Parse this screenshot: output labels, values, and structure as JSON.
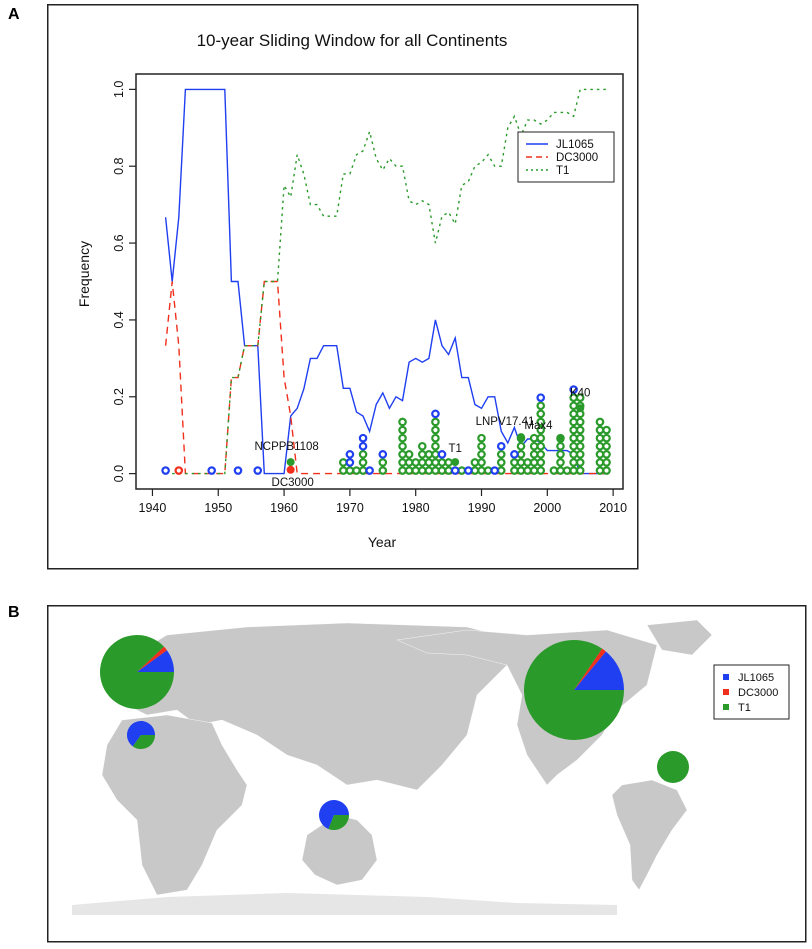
{
  "panels": {
    "a_label": "A",
    "b_label": "B"
  },
  "colors": {
    "JL1065": "#1f3ff0",
    "DC3000": "#f0301c",
    "T1": "#2a9a2a",
    "land": "#c8c8c8",
    "antarctica": "#e6e6e6"
  },
  "chart_data": [
    {
      "type": "line",
      "title": "10-year Sliding Window for all Continents",
      "xlabel": "Year",
      "ylabel": "Frequency",
      "xlim": [
        1940,
        2010
      ],
      "ylim": [
        0.0,
        1.0
      ],
      "x_ticks": [
        "1940",
        "1950",
        "1960",
        "1970",
        "1980",
        "1990",
        "2000",
        "2010"
      ],
      "y_ticks": [
        "0.0",
        "0.2",
        "0.4",
        "0.6",
        "0.8",
        "1.0"
      ],
      "grid": false,
      "legend": {
        "placement": "top-right",
        "entries": [
          {
            "name": "JL1065",
            "style": "solid"
          },
          {
            "name": "DC3000",
            "style": "dashed"
          },
          {
            "name": "T1",
            "style": "dotted"
          }
        ]
      },
      "series": [
        {
          "name": "JL1065",
          "style": "solid",
          "x": [
            1942,
            1943,
            1944,
            1945,
            1946,
            1947,
            1948,
            1949,
            1950,
            1951,
            1952,
            1953,
            1954,
            1955,
            1956,
            1957,
            1958,
            1959,
            1960,
            1961,
            1962,
            1963,
            1964,
            1965,
            1966,
            1967,
            1968,
            1969,
            1970,
            1971,
            1972,
            1973,
            1974,
            1975,
            1976,
            1977,
            1978,
            1979,
            1980,
            1981,
            1982,
            1983,
            1984,
            1985,
            1986,
            1987,
            1988,
            1989,
            1990,
            1991,
            1992,
            1993,
            1994,
            1995,
            1996,
            1997,
            1998,
            1999,
            2000,
            2001,
            2002,
            2003,
            2004,
            2005,
            2006,
            2007,
            2008,
            2009
          ],
          "y": [
            0.667,
            0.5,
            0.667,
            1.0,
            1.0,
            1.0,
            1.0,
            1.0,
            1.0,
            1.0,
            0.5,
            0.5,
            0.333,
            0.333,
            0.333,
            0.0,
            0.0,
            0.0,
            0.0,
            0.15,
            0.17,
            0.22,
            0.3,
            0.3,
            0.333,
            0.333,
            0.333,
            0.222,
            0.222,
            0.16,
            0.15,
            0.11,
            0.18,
            0.21,
            0.17,
            0.2,
            0.19,
            0.29,
            0.3,
            0.29,
            0.3,
            0.4,
            0.333,
            0.31,
            0.353,
            0.25,
            0.25,
            0.18,
            0.17,
            0.2,
            0.2,
            0.11,
            0.08,
            0.12,
            0.07,
            0.09,
            0.09,
            0.08,
            0.06,
            0.06,
            0.06,
            0.06,
            0.05,
            0.0,
            0.0,
            0.0,
            0.0,
            0.0
          ]
        },
        {
          "name": "DC3000",
          "style": "dashed",
          "x": [
            1942,
            1943,
            1944,
            1945,
            1946,
            1947,
            1948,
            1949,
            1950,
            1951,
            1952,
            1953,
            1954,
            1955,
            1956,
            1957,
            1958,
            1959,
            1960,
            1961,
            1962,
            1963,
            1970,
            1980,
            1990,
            2000,
            2009
          ],
          "y": [
            0.333,
            0.5,
            0.333,
            0.0,
            0.0,
            0.0,
            0.0,
            0.0,
            0.0,
            0.0,
            0.25,
            0.25,
            0.333,
            0.333,
            0.333,
            0.5,
            0.5,
            0.5,
            0.25,
            0.15,
            0.0,
            0.0,
            0.0,
            0.0,
            0.0,
            0.0,
            0.0
          ]
        },
        {
          "name": "T1",
          "style": "dotted",
          "x": [
            1943,
            1944,
            1945,
            1946,
            1947,
            1948,
            1949,
            1950,
            1951,
            1952,
            1953,
            1954,
            1955,
            1956,
            1957,
            1958,
            1959,
            1960,
            1961,
            1962,
            1963,
            1964,
            1965,
            1966,
            1967,
            1968,
            1969,
            1970,
            1971,
            1972,
            1973,
            1974,
            1975,
            1976,
            1977,
            1978,
            1979,
            1980,
            1981,
            1982,
            1983,
            1984,
            1985,
            1986,
            1987,
            1988,
            1989,
            1990,
            1991,
            1992,
            1993,
            1994,
            1995,
            1996,
            1997,
            1998,
            1999,
            2000,
            2001,
            2002,
            2003,
            2004,
            2005,
            2006,
            2007,
            2008,
            2009
          ],
          "y": [
            0.0,
            0.0,
            0.0,
            0.0,
            0.0,
            0.0,
            0.0,
            0.0,
            0.0,
            0.25,
            0.25,
            0.333,
            0.333,
            0.333,
            0.5,
            0.5,
            0.5,
            0.75,
            0.72,
            0.83,
            0.78,
            0.7,
            0.7,
            0.67,
            0.67,
            0.67,
            0.78,
            0.78,
            0.83,
            0.84,
            0.89,
            0.82,
            0.79,
            0.82,
            0.8,
            0.8,
            0.71,
            0.7,
            0.71,
            0.7,
            0.6,
            0.67,
            0.68,
            0.65,
            0.75,
            0.76,
            0.8,
            0.81,
            0.83,
            0.8,
            0.8,
            0.9,
            0.93,
            0.88,
            0.92,
            0.92,
            0.91,
            0.92,
            0.94,
            0.94,
            0.94,
            0.93,
            1.0,
            1.0,
            1.0,
            1.0,
            1.0
          ]
        }
      ],
      "isolate_stacks": {
        "description": "circles at the bottom: one open circle per isolate, stacked by year",
        "JL1065": [
          [
            1942,
            1
          ],
          [
            1949,
            1
          ],
          [
            1953,
            1
          ],
          [
            1956,
            1
          ],
          [
            1970,
            2
          ],
          [
            1972,
            2
          ],
          [
            1973,
            1
          ],
          [
            1975,
            1
          ],
          [
            1983,
            1
          ],
          [
            1984,
            1
          ],
          [
            1986,
            1
          ],
          [
            1988,
            1
          ],
          [
            1992,
            1
          ],
          [
            1993,
            1
          ],
          [
            1995,
            1
          ],
          [
            1999,
            1
          ],
          [
            2004,
            1
          ]
        ],
        "DC3000": [
          [
            1944,
            1
          ]
        ],
        "T1": [
          [
            1969,
            2
          ],
          [
            1970,
            1
          ],
          [
            1971,
            1
          ],
          [
            1972,
            3
          ],
          [
            1975,
            2
          ],
          [
            1978,
            7
          ],
          [
            1979,
            3
          ],
          [
            1980,
            2
          ],
          [
            1981,
            4
          ],
          [
            1982,
            3
          ],
          [
            1983,
            7
          ],
          [
            1984,
            2
          ],
          [
            1985,
            2
          ],
          [
            1987,
            1
          ],
          [
            1989,
            2
          ],
          [
            1990,
            5
          ],
          [
            1991,
            1
          ],
          [
            1993,
            3
          ],
          [
            1995,
            2
          ],
          [
            1996,
            5
          ],
          [
            1997,
            2
          ],
          [
            1998,
            5
          ],
          [
            1999,
            9
          ],
          [
            2001,
            1
          ],
          [
            2002,
            5
          ],
          [
            2003,
            1
          ],
          [
            2004,
            10
          ],
          [
            2005,
            10
          ],
          [
            2008,
            7
          ],
          [
            2009,
            6
          ]
        ]
      },
      "annotations": [
        {
          "text": "NCPPB1108",
          "x": 1961,
          "y": 0.03,
          "marker_series": "T1"
        },
        {
          "text": "DC3000",
          "x": 1961,
          "y": 0.01,
          "marker_series": "DC3000"
        },
        {
          "text": "T1",
          "x": 1986,
          "y": 0.03,
          "marker_series": "T1"
        },
        {
          "text": "LNPV17.41",
          "x": 1996,
          "y": 0.095,
          "marker_series": "T1"
        },
        {
          "text": "Max4",
          "x": 2002,
          "y": 0.09,
          "marker_series": "T1"
        },
        {
          "text": "K40",
          "x": 2005,
          "y": 0.17,
          "marker_series": "T1"
        }
      ]
    },
    {
      "type": "pie",
      "title": "",
      "subtype": "map pie charts by region",
      "legend": {
        "placement": "top-right",
        "entries": [
          "JL1065",
          "DC3000",
          "T1"
        ]
      },
      "categories": [
        "JL1065",
        "DC3000",
        "T1"
      ],
      "pies": [
        {
          "region": "Europe",
          "size": "large",
          "values": [
            0.1,
            0.02,
            0.88
          ]
        },
        {
          "region": "North America",
          "size": "largest",
          "values": [
            0.14,
            0.015,
            0.845
          ]
        },
        {
          "region": "Africa",
          "size": "small",
          "values": [
            0.65,
            0.0,
            0.35
          ]
        },
        {
          "region": "Australia",
          "size": "small",
          "values": [
            0.69,
            0.0,
            0.31
          ]
        },
        {
          "region": "South America",
          "size": "small",
          "values": [
            0.0,
            0.0,
            1.0
          ]
        }
      ]
    }
  ]
}
